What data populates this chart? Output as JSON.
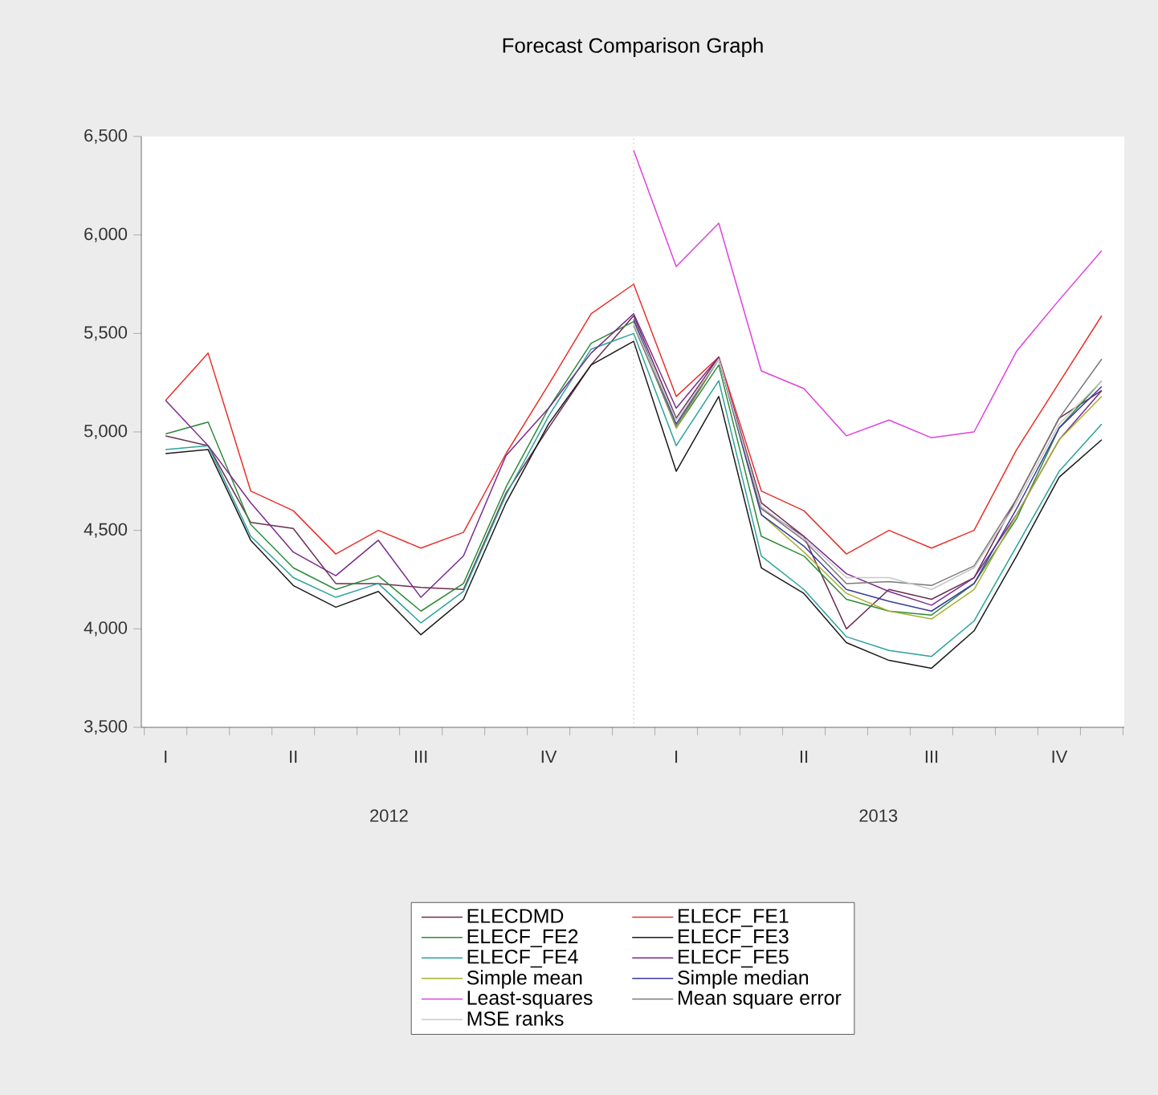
{
  "chart_data": {
    "type": "line",
    "title": "Forecast Comparison Graph",
    "categories": [
      "I",
      null,
      null,
      "II",
      null,
      null,
      "III",
      null,
      null,
      "IV",
      null,
      null,
      "I",
      null,
      null,
      "II",
      null,
      null,
      "III",
      null,
      null,
      "IV",
      null
    ],
    "series": [
      {
        "name": "ELECDMD",
        "color": "#6b2d4f",
        "values": [
          4980,
          4930,
          4540,
          4510,
          4230,
          4230,
          4210,
          4200,
          4690,
          5020,
          5340,
          5590,
          5070,
          5380,
          4640,
          4470,
          4000,
          4200,
          4150,
          4260,
          4660,
          5070,
          5210
        ]
      },
      {
        "name": "ELECF_FE1",
        "color": "#e8302a",
        "values": [
          5160,
          5400,
          4700,
          4600,
          4380,
          4500,
          4410,
          4490,
          4890,
          5240,
          5600,
          5750,
          5180,
          5380,
          4700,
          4600,
          4380,
          4500,
          4410,
          4500,
          4910,
          5250,
          5590
        ]
      },
      {
        "name": "ELECF_FE2",
        "color": "#2e8b3a",
        "values": [
          4990,
          5050,
          4530,
          4310,
          4200,
          4270,
          4090,
          4230,
          4720,
          5120,
          5450,
          5560,
          5020,
          5340,
          4470,
          4370,
          4150,
          4090,
          4070,
          4230,
          4560,
          5020,
          5260
        ]
      },
      {
        "name": "ELECF_FE3",
        "color": "#1a1a1a",
        "values": [
          4890,
          4910,
          4450,
          4220,
          4110,
          4190,
          3970,
          4150,
          4640,
          5040,
          5340,
          5460,
          4800,
          5180,
          4310,
          4180,
          3930,
          3840,
          3800,
          3990,
          4370,
          4770,
          4960
        ]
      },
      {
        "name": "ELECF_FE4",
        "color": "#2aa39a",
        "values": [
          4910,
          4930,
          4470,
          4260,
          4160,
          4230,
          4030,
          4190,
          4680,
          5080,
          5420,
          5500,
          4930,
          5260,
          4370,
          4200,
          3960,
          3890,
          3860,
          4040,
          4420,
          4800,
          5040
        ]
      },
      {
        "name": "ELECF_FE5",
        "color": "#7a2a8a",
        "values": [
          5160,
          4930,
          4640,
          4390,
          4270,
          4450,
          4160,
          4370,
          4880,
          5120,
          5400,
          5600,
          5120,
          5380,
          4610,
          4470,
          4280,
          4190,
          4120,
          4260,
          4580,
          4960,
          5210
        ]
      },
      {
        "name": "Simple mean",
        "color": "#a8b030",
        "values": [
          null,
          null,
          null,
          null,
          null,
          null,
          null,
          null,
          null,
          null,
          null,
          5560,
          5020,
          5370,
          4580,
          4390,
          4180,
          4090,
          4050,
          4200,
          4580,
          4960,
          5180
        ]
      },
      {
        "name": "Simple median",
        "color": "#3a3a9a",
        "values": [
          null,
          null,
          null,
          null,
          null,
          null,
          null,
          null,
          null,
          null,
          null,
          5570,
          5040,
          5370,
          4580,
          4420,
          4200,
          4140,
          4090,
          4230,
          4610,
          5020,
          5230
        ]
      },
      {
        "name": "Least-squares",
        "color": "#e040e0",
        "values": [
          null,
          null,
          null,
          null,
          null,
          null,
          null,
          null,
          null,
          null,
          null,
          6430,
          5840,
          6060,
          5310,
          5220,
          4980,
          5060,
          4970,
          5000,
          5410,
          5670,
          5920
        ]
      },
      {
        "name": "Mean square error",
        "color": "#7a7a7a",
        "values": [
          null,
          null,
          null,
          null,
          null,
          null,
          null,
          null,
          null,
          null,
          null,
          5540,
          5030,
          5370,
          4610,
          4450,
          4230,
          4240,
          4220,
          4320,
          4660,
          5070,
          5370
        ]
      },
      {
        "name": "MSE ranks",
        "color": "#c8c8c8",
        "values": [
          null,
          null,
          null,
          null,
          null,
          null,
          null,
          null,
          null,
          null,
          null,
          5550,
          5060,
          5370,
          4620,
          4460,
          4260,
          4260,
          4200,
          4310,
          4640,
          5040,
          5260
        ]
      }
    ],
    "ylim": [
      3500,
      6500
    ],
    "yticks": [
      {
        "value": 3500,
        "label": "3,500"
      },
      {
        "value": 4000,
        "label": "4,000"
      },
      {
        "value": 4500,
        "label": "4,500"
      },
      {
        "value": 5000,
        "label": "5,000"
      },
      {
        "value": 5500,
        "label": "5,500"
      },
      {
        "value": 6000,
        "label": "6,000"
      },
      {
        "value": 6500,
        "label": "6,500"
      }
    ],
    "annotations": [
      "2012",
      "2013"
    ],
    "legend": "bottom"
  }
}
